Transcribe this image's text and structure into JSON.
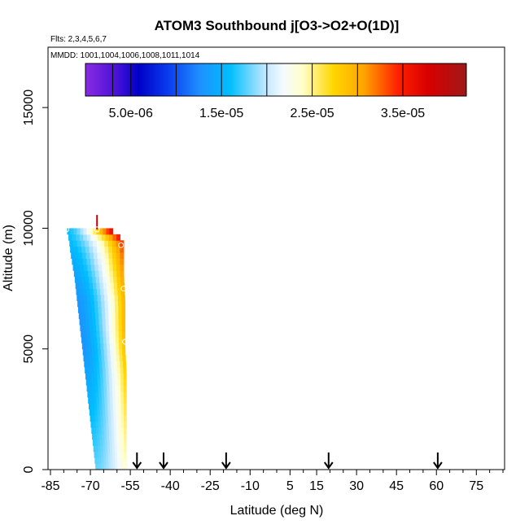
{
  "chart_data": {
    "type": "heatmap",
    "title": "ATOM3 Southbound j[O3->O2+O(1D)]",
    "flights_label": "Flts: 2,3,4,5,6,7",
    "mmdd_label": "MMDD: 1001,1004,1006,1008,1011,1014",
    "xlabel": "Latitude (deg N)",
    "ylabel": "Altitude (m)",
    "xlim": [
      -85,
      85
    ],
    "ylim": [
      0,
      17500
    ],
    "x_ticks": [
      -85,
      -70,
      -55,
      -40,
      -25,
      -10,
      5,
      15,
      30,
      45,
      60,
      75
    ],
    "y_ticks": [
      0,
      5000,
      10000,
      15000
    ],
    "colorbar": {
      "min": 0,
      "max": 4.2e-05,
      "ticks": [
        "5.0e-06",
        "1.5e-05",
        "2.5e-05",
        "3.5e-05"
      ],
      "tick_values": [
        5e-06,
        1.5e-05,
        2.5e-05,
        3.5e-05
      ],
      "segment_edges": [
        0,
        3e-06,
        5e-06,
        1e-05,
        1.5e-05,
        2e-05,
        2.5e-05,
        3e-05,
        3.5e-05,
        4.2e-05
      ],
      "stops": [
        {
          "v": 0.0,
          "color": "#8a2be2"
        },
        {
          "v": 0.08,
          "color": "#4b12d8"
        },
        {
          "v": 0.14,
          "color": "#0000c8"
        },
        {
          "v": 0.22,
          "color": "#0a3ff0"
        },
        {
          "v": 0.3,
          "color": "#1e90ff"
        },
        {
          "v": 0.38,
          "color": "#00bfff"
        },
        {
          "v": 0.47,
          "color": "#bde6ff"
        },
        {
          "v": 0.52,
          "color": "#f5fbff"
        },
        {
          "v": 0.57,
          "color": "#ffffc8"
        },
        {
          "v": 0.65,
          "color": "#ffd700"
        },
        {
          "v": 0.73,
          "color": "#ffa500"
        },
        {
          "v": 0.82,
          "color": "#ff2000"
        },
        {
          "v": 0.9,
          "color": "#d70000"
        },
        {
          "v": 1.0,
          "color": "#a01818"
        }
      ]
    },
    "profile": {
      "altitudes": [
        0,
        1000,
        2000,
        3000,
        4000,
        5000,
        6000,
        7000,
        8000,
        9000,
        9500,
        10000
      ],
      "lat_west": [
        -68.0,
        -69.0,
        -70.0,
        -71.0,
        -72.0,
        -73.0,
        -74.0,
        -75.0,
        -76.0,
        -77.5,
        -78.0,
        -79.0
      ],
      "lat_east": [
        -56.5,
        -56.5,
        -56.5,
        -56.5,
        -56.5,
        -57.0,
        -57.0,
        -57.0,
        -57.5,
        -57.5,
        -57.5,
        -63.0
      ],
      "values_west": [
        1.8e-05,
        1.7e-05,
        1.6e-05,
        1.5e-05,
        1.4e-05,
        1.3e-05,
        1.3e-05,
        1.3e-05,
        1.4e-05,
        1.5e-05,
        1.6e-05,
        1.6e-05
      ],
      "values_east": [
        2.4e-05,
        2.5e-05,
        2.6e-05,
        2.7e-05,
        2.8e-05,
        2.9e-05,
        3e-05,
        3e-05,
        3.1e-05,
        3.3e-05,
        3.5e-05,
        3.8e-05
      ]
    },
    "markers": [
      {
        "lat": -58.5,
        "alt": 9300
      },
      {
        "lat": -57.5,
        "alt": 7500
      },
      {
        "lat": -57.0,
        "alt": 5300
      },
      {
        "lat": -56.5,
        "alt": 200
      },
      {
        "lat": -79.0,
        "alt": 9950
      },
      {
        "lat": -67.5,
        "alt": 9950
      }
    ],
    "red_tick": {
      "lat": -67.5,
      "alt_from": 9950,
      "alt_to": 10550
    },
    "arrows_lat": [
      -52.5,
      -42.5,
      -19.0,
      19.5,
      60.5
    ]
  }
}
